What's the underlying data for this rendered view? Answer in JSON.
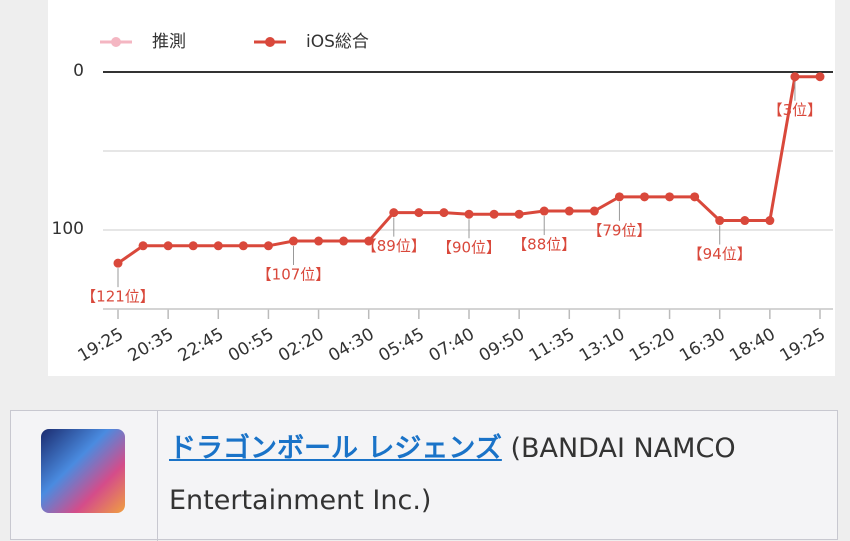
{
  "chart_data": {
    "type": "line",
    "categories": [
      "19:25",
      null,
      "20:35",
      null,
      "22:45",
      null,
      "00:55",
      null,
      "02:20",
      null,
      "04:30",
      null,
      "05:45",
      null,
      "07:40",
      null,
      "09:50",
      null,
      "11:35",
      null,
      "13:10",
      null,
      "15:20",
      null,
      "16:30",
      null,
      "18:40",
      null,
      "19:25"
    ],
    "series": [
      {
        "name": "推測",
        "color": "#f4b6c2",
        "values": [
          null,
          null,
          null,
          null,
          null,
          null,
          null,
          null,
          null,
          null,
          null,
          null,
          null,
          null,
          null,
          null,
          null,
          null,
          null,
          null,
          null,
          null,
          null,
          null,
          null,
          null,
          null,
          null,
          null
        ]
      },
      {
        "name": "iOS総合",
        "color": "#d9483b",
        "values": [
          121,
          110,
          110,
          110,
          110,
          110,
          110,
          107,
          107,
          107,
          107,
          89,
          89,
          89,
          90,
          90,
          90,
          88,
          88,
          88,
          79,
          79,
          79,
          79,
          94,
          94,
          94,
          3,
          3
        ],
        "value_labels": [
          "【121位】",
          null,
          null,
          null,
          null,
          null,
          null,
          "【107位】",
          null,
          null,
          null,
          "【89位】",
          null,
          null,
          "【90位】",
          null,
          null,
          "【88位】",
          null,
          null,
          "【79位】",
          null,
          null,
          null,
          "【94位】",
          null,
          null,
          "【3位】",
          null
        ]
      }
    ],
    "ylim": [
      0,
      150
    ],
    "y_inverted": true,
    "yticks": [
      0,
      100
    ],
    "minor_grid": [
      50,
      150
    ],
    "grid": true,
    "legend": "top-left"
  },
  "app": {
    "title": "ドラゴンボール レジェンズ",
    "publisher": "(BANDAI NAMCO Entertainment Inc.)"
  }
}
